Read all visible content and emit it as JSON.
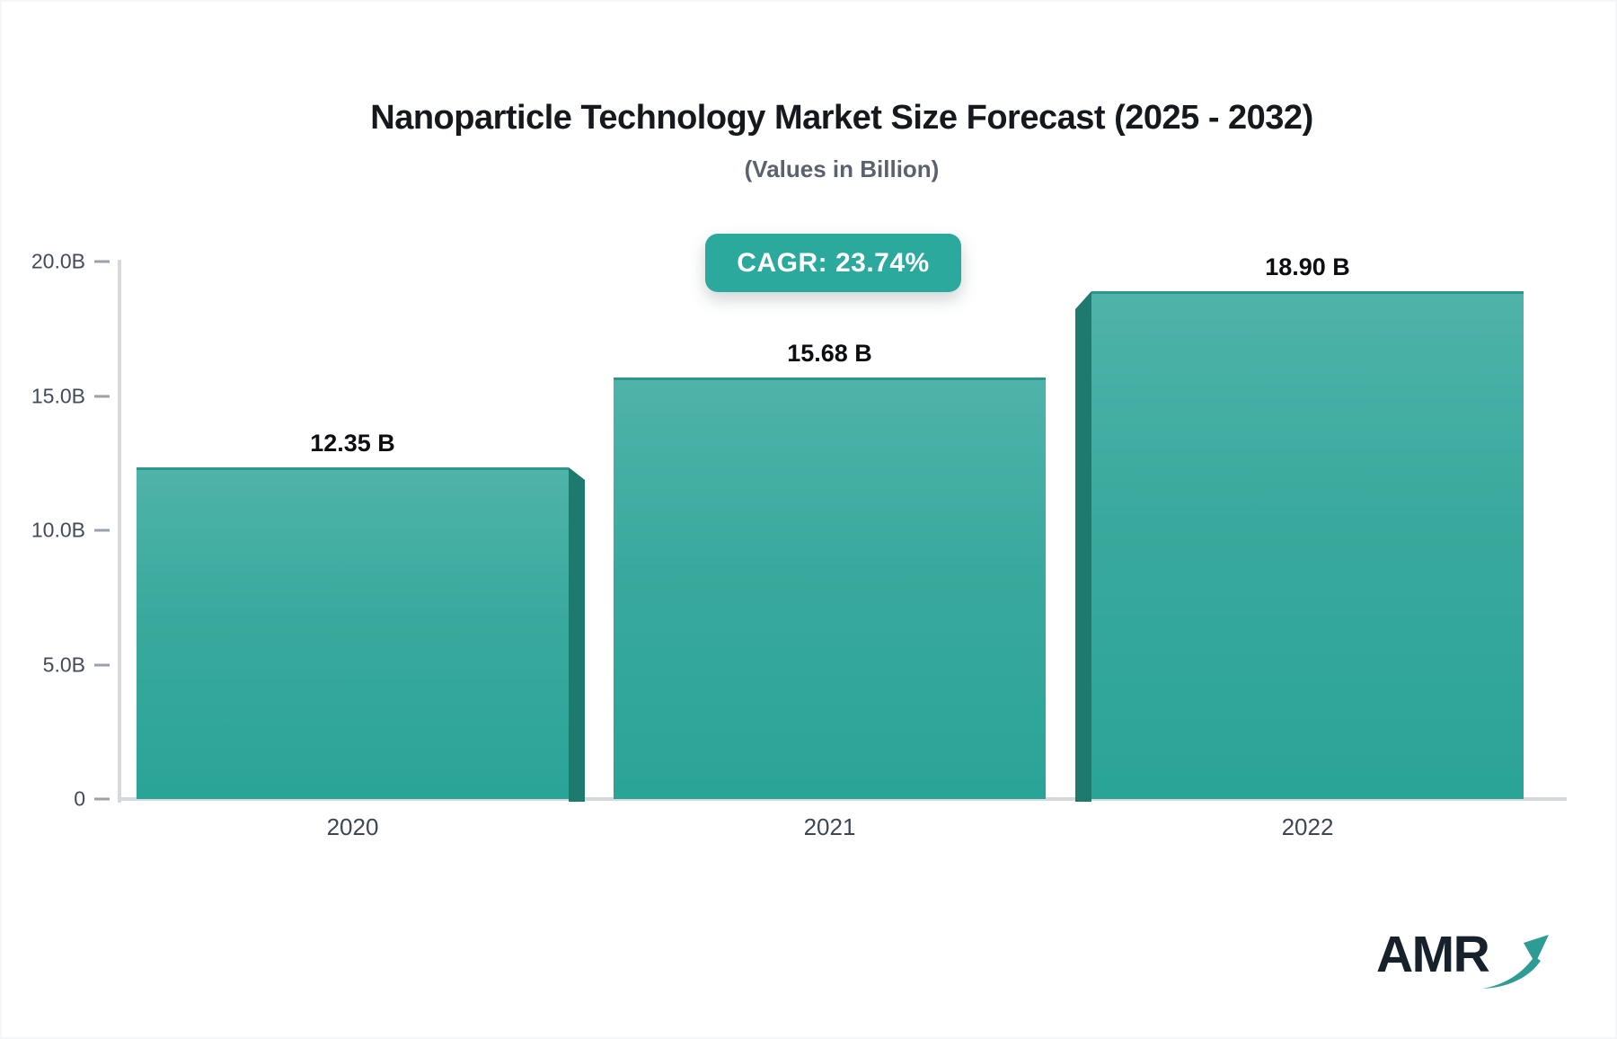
{
  "header": {
    "title": "Nanoparticle Technology Market Size Forecast (2025 - 2032)",
    "subtitle": "(Values in Billion)"
  },
  "badge": {
    "label": "CAGR: 23.74%"
  },
  "chart_data": {
    "type": "bar",
    "title": "Nanoparticle Technology Market Size Forecast (2025 - 2032)",
    "subtitle": "(Values in Billion)",
    "categories": [
      "2020",
      "2021",
      "2022"
    ],
    "values": [
      12.35,
      15.68,
      18.9
    ],
    "value_labels": [
      "12.35 B",
      "15.68 B",
      "18.90 B"
    ],
    "annotations": [
      "CAGR: 23.74%"
    ],
    "xlabel": "",
    "ylabel": "",
    "ylim": [
      0,
      20
    ],
    "y_ticks": [
      {
        "value": 20,
        "label": "20.0B"
      },
      {
        "value": 15,
        "label": "15.0B"
      },
      {
        "value": 10,
        "label": "10.0B"
      },
      {
        "value": 5,
        "label": "5.0B"
      },
      {
        "value": 0,
        "label": "0"
      }
    ],
    "grid": false,
    "legend": "none",
    "colors": {
      "bar_gradient_top": "#4FB3AA",
      "bar_gradient_bottom": "#2AA497",
      "bar_top_edge": "#2D978B",
      "bar_side_shade": "#1E7A6E",
      "accent": "#2BA99C",
      "axis": "#D5D8DD",
      "tick_text": "#414B5A"
    }
  },
  "logo": {
    "text": "AMR"
  }
}
